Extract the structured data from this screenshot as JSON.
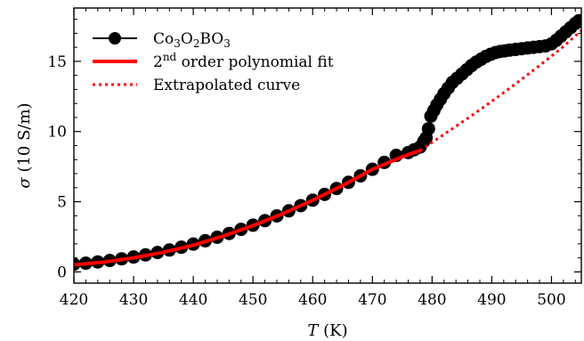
{
  "chart_data": {
    "type": "scatter",
    "xlabel": "T (K)",
    "ylabel": "σ (10 S/m)",
    "xlim": [
      420,
      505
    ],
    "ylim": [
      -0.8,
      18.8
    ],
    "xticks": [
      420,
      430,
      440,
      450,
      460,
      470,
      480,
      490,
      500
    ],
    "yticks": [
      0,
      5,
      10,
      15
    ],
    "grid": false,
    "legend_position": "top-left",
    "series": [
      {
        "name": "Co3O2BO3",
        "style": "markers",
        "color": "#000000",
        "x": [
          420,
          422,
          424,
          426,
          428,
          430,
          432,
          434,
          436,
          438,
          440,
          442,
          444,
          446,
          448,
          450,
          452,
          454,
          456,
          458,
          460,
          462,
          464,
          466,
          468,
          470,
          472,
          474,
          476,
          477,
          478,
          478.6,
          479.0,
          479.4,
          479.8,
          480.3,
          480.8,
          481.4,
          482.0,
          482.7,
          483.4,
          484.2,
          485.0,
          485.8,
          486.6,
          487.4,
          488.2,
          489.0,
          489.8,
          490.6,
          491.4,
          492.2,
          493.0,
          494.0,
          495.0,
          496.0,
          497.0,
          498.0,
          499.0,
          500.0,
          500.8,
          501.6,
          502.4,
          503.2,
          504.0,
          504.6
        ],
        "y": [
          0.55,
          0.62,
          0.71,
          0.81,
          0.93,
          1.06,
          1.21,
          1.38,
          1.56,
          1.76,
          1.98,
          2.22,
          2.47,
          2.74,
          3.03,
          3.33,
          3.65,
          3.99,
          4.35,
          4.72,
          5.11,
          5.52,
          5.94,
          6.38,
          6.84,
          7.31,
          7.8,
          8.3,
          8.5,
          8.7,
          8.9,
          9.3,
          9.55,
          10.2,
          11.1,
          11.5,
          11.9,
          12.3,
          12.7,
          13.1,
          13.5,
          13.8,
          14.1,
          14.4,
          14.7,
          14.95,
          15.15,
          15.35,
          15.5,
          15.62,
          15.7,
          15.75,
          15.8,
          15.85,
          15.9,
          15.95,
          16.0,
          16.05,
          16.1,
          16.25,
          16.5,
          16.8,
          17.1,
          17.4,
          17.7,
          17.9
        ]
      },
      {
        "name": "2nd order polynomial fit",
        "style": "solid",
        "color": "#ff0000",
        "x": [
          420,
          425,
          430,
          435,
          440,
          445,
          450,
          455,
          460,
          465,
          470,
          475,
          478
        ],
        "y": [
          0.5,
          0.7,
          1.0,
          1.4,
          1.9,
          2.55,
          3.3,
          4.15,
          5.1,
          6.15,
          7.3,
          8.2,
          8.65
        ]
      },
      {
        "name": "Extrapolated curve",
        "style": "dotted",
        "color": "#ff0000",
        "x": [
          478,
          482,
          486,
          490,
          494,
          498,
          502,
          505
        ],
        "y": [
          8.65,
          9.8,
          10.95,
          12.15,
          13.4,
          14.7,
          16.05,
          17.2
        ]
      }
    ]
  },
  "legend": {
    "entries": [
      {
        "parts": [
          {
            "t": "Co"
          },
          {
            "t": "3",
            "sub": true
          },
          {
            "t": "O"
          },
          {
            "t": "2",
            "sub": true
          },
          {
            "t": "BO"
          },
          {
            "t": "3",
            "sub": true
          }
        ]
      },
      {
        "parts": [
          {
            "t": "2"
          },
          {
            "t": "nd",
            "sup": true
          },
          {
            "t": " order polynomial fit"
          }
        ]
      },
      {
        "parts": [
          {
            "t": "Extrapolated curve"
          }
        ]
      }
    ]
  },
  "axis_titles": {
    "x": {
      "var": "T",
      "unit": " (K)"
    },
    "y": {
      "var": "σ",
      "unit": " (10 S/m)"
    }
  }
}
